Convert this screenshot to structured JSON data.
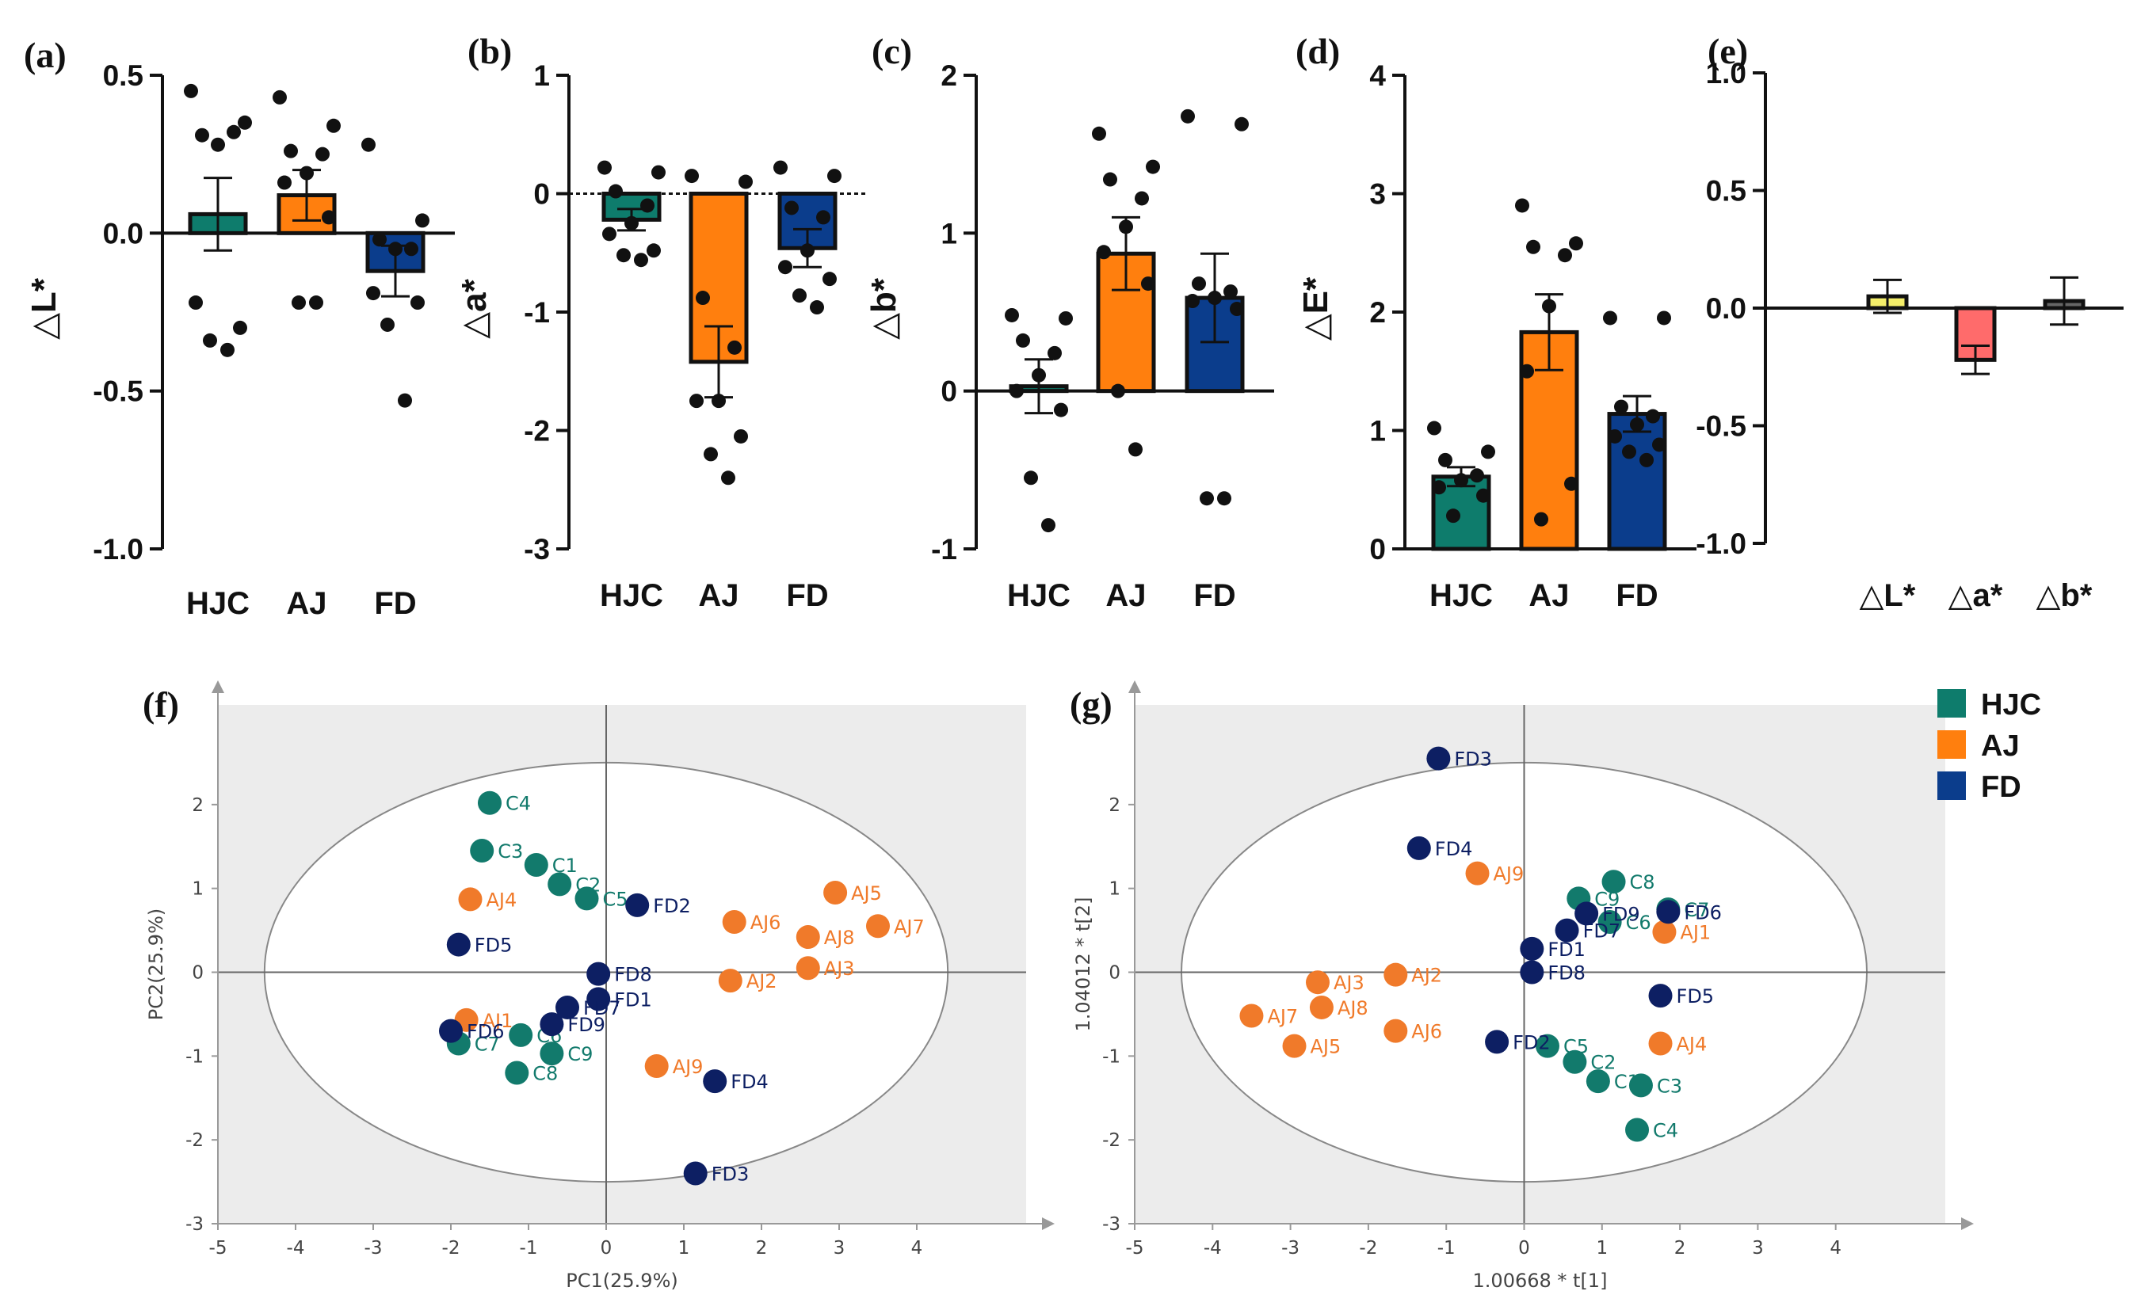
{
  "colors": {
    "HJC": "#0e7c6c",
    "AJ": "#ff7f0e",
    "FD": "#0b3d8c",
    "HJC_pca": "#127a6c",
    "AJ_pca": "#f07a2a",
    "FD_pca": "#0d1f63",
    "L": "#f5ef6a",
    "a": "#ff6b6b",
    "b": "#666666"
  },
  "legend": [
    {
      "label": "HJC",
      "color": "#0e7c6c"
    },
    {
      "label": "AJ",
      "color": "#ff7f0e"
    },
    {
      "label": "FD",
      "color": "#0b3d8c"
    }
  ],
  "chart_data": [
    {
      "panel": "(a)",
      "type": "bar",
      "ylabel": "△L*",
      "ylim": [
        -1.0,
        0.5
      ],
      "yticks": [
        0.5,
        0.0,
        -0.5,
        -1.0
      ],
      "ytick_labels": [
        "0.5",
        "0.0",
        "-0.5",
        "-1.0"
      ],
      "categories": [
        "HJC",
        "AJ",
        "FD"
      ],
      "values": [
        0.06,
        0.12,
        -0.12
      ],
      "errors": [
        0.115,
        0.08,
        0.08
      ],
      "points": [
        [
          0.45,
          0.35,
          0.31,
          0.32,
          0.28,
          -0.22,
          -0.3,
          -0.34,
          -0.37
        ],
        [
          0.43,
          0.34,
          0.26,
          0.25,
          0.19,
          0.16,
          0.05,
          -0.22,
          -0.22
        ],
        [
          0.28,
          0.04,
          -0.02,
          -0.05,
          -0.05,
          -0.19,
          -0.22,
          -0.29,
          -0.53
        ]
      ]
    },
    {
      "panel": "(b)",
      "type": "bar",
      "ylabel": "△a*",
      "ylim": [
        -3,
        1
      ],
      "yticks": [
        1,
        0,
        -1,
        -2,
        -3
      ],
      "ytick_labels": [
        "1",
        "0",
        "-1",
        "-2",
        "-3"
      ],
      "categories": [
        "HJC",
        "AJ",
        "FD"
      ],
      "values": [
        -0.22,
        -1.42,
        -0.46
      ],
      "errors": [
        0.09,
        0.3,
        0.16
      ],
      "points": [
        [
          0.22,
          0.18,
          0.02,
          -0.1,
          -0.25,
          -0.34,
          -0.48,
          -0.52,
          -0.56
        ],
        [
          0.15,
          0.1,
          -0.88,
          -1.3,
          -1.75,
          -1.75,
          -2.05,
          -2.2,
          -2.4
        ],
        [
          0.22,
          0.15,
          -0.12,
          -0.2,
          -0.48,
          -0.62,
          -0.72,
          -0.86,
          -0.96
        ]
      ]
    },
    {
      "panel": "(c)",
      "type": "bar",
      "ylabel": "△b*",
      "ylim": [
        -1,
        2
      ],
      "yticks": [
        2,
        1,
        0,
        -1
      ],
      "ytick_labels": [
        "2",
        "1",
        "0",
        "-1"
      ],
      "categories": [
        "HJC",
        "AJ",
        "FD"
      ],
      "values": [
        0.03,
        0.87,
        0.59
      ],
      "errors": [
        0.17,
        0.23,
        0.28
      ],
      "points": [
        [
          0.48,
          0.46,
          0.32,
          0.24,
          0.1,
          0.0,
          -0.12,
          -0.55,
          -0.85
        ],
        [
          1.63,
          1.42,
          1.34,
          1.22,
          1.04,
          0.88,
          0.68,
          0.0,
          -0.37
        ],
        [
          1.74,
          1.69,
          0.68,
          0.63,
          0.59,
          0.57,
          0.52,
          -0.68,
          -0.68
        ]
      ]
    },
    {
      "panel": "(d)",
      "type": "bar",
      "ylabel": "△E*",
      "ylim": [
        0,
        4
      ],
      "yticks": [
        4,
        3,
        2,
        1,
        0
      ],
      "ytick_labels": [
        "4",
        "3",
        "2",
        "1",
        "0"
      ],
      "categories": [
        "HJC",
        "AJ",
        "FD"
      ],
      "values": [
        0.61,
        1.83,
        1.14
      ],
      "errors": [
        0.08,
        0.32,
        0.15
      ],
      "points": [
        [
          1.02,
          0.82,
          0.75,
          0.62,
          0.58,
          0.52,
          0.45,
          0.28
        ],
        [
          2.9,
          2.58,
          2.55,
          2.48,
          2.05,
          1.5,
          0.55,
          0.25
        ],
        [
          1.95,
          1.95,
          1.2,
          1.12,
          1.05,
          0.95,
          0.88,
          0.82,
          0.75
        ]
      ]
    },
    {
      "panel": "(e)",
      "type": "bar",
      "ylim": [
        -1.0,
        1.0
      ],
      "yticks": [
        1.0,
        0.5,
        0.0,
        -0.5,
        -1.0
      ],
      "ytick_labels": [
        "1.0",
        "0.5",
        "0.0",
        "-0.5",
        "-1.0"
      ],
      "categories": [
        "△L*",
        "△a*",
        "△b*"
      ],
      "values": [
        0.05,
        -0.22,
        0.03
      ],
      "errors": [
        0.07,
        0.06,
        0.1
      ]
    },
    {
      "panel": "(f)",
      "type": "scatter",
      "xlabel": "PC1(25.9%)",
      "ylabel": "PC2(25.9%)",
      "xlim": [
        -5,
        5
      ],
      "ylim": [
        -3,
        3
      ],
      "xticks": [
        -5,
        -4,
        -3,
        -2,
        -1,
        0,
        1,
        2,
        3,
        4
      ],
      "yticks": [
        -3,
        -2,
        -1,
        0,
        1,
        2
      ],
      "ellipse": {
        "cx": 0,
        "cy": 0,
        "rx": 4.4,
        "ry": 2.5
      },
      "points": [
        {
          "label": "C1",
          "group": "HJC",
          "x": -0.9,
          "y": 1.28
        },
        {
          "label": "C2",
          "group": "HJC",
          "x": -0.6,
          "y": 1.05
        },
        {
          "label": "C3",
          "group": "HJC",
          "x": -1.6,
          "y": 1.45
        },
        {
          "label": "C4",
          "group": "HJC",
          "x": -1.5,
          "y": 2.02
        },
        {
          "label": "C5",
          "group": "HJC",
          "x": -0.25,
          "y": 0.88
        },
        {
          "label": "C6",
          "group": "HJC",
          "x": -1.1,
          "y": -0.75
        },
        {
          "label": "C7",
          "group": "HJC",
          "x": -1.9,
          "y": -0.85
        },
        {
          "label": "C8",
          "group": "HJC",
          "x": -1.15,
          "y": -1.2
        },
        {
          "label": "C9",
          "group": "HJC",
          "x": -0.7,
          "y": -0.97
        },
        {
          "label": "AJ1",
          "group": "AJ",
          "x": -1.8,
          "y": -0.57
        },
        {
          "label": "AJ2",
          "group": "AJ",
          "x": 1.6,
          "y": -0.1
        },
        {
          "label": "AJ3",
          "group": "AJ",
          "x": 2.6,
          "y": 0.05
        },
        {
          "label": "AJ4",
          "group": "AJ",
          "x": -1.75,
          "y": 0.87
        },
        {
          "label": "AJ5",
          "group": "AJ",
          "x": 2.95,
          "y": 0.95
        },
        {
          "label": "AJ6",
          "group": "AJ",
          "x": 1.65,
          "y": 0.6
        },
        {
          "label": "AJ7",
          "group": "AJ",
          "x": 3.5,
          "y": 0.55
        },
        {
          "label": "AJ8",
          "group": "AJ",
          "x": 2.6,
          "y": 0.42
        },
        {
          "label": "AJ9",
          "group": "AJ",
          "x": 0.65,
          "y": -1.12
        },
        {
          "label": "FD1",
          "group": "FD",
          "x": -0.1,
          "y": -0.32
        },
        {
          "label": "FD2",
          "group": "FD",
          "x": 0.4,
          "y": 0.8
        },
        {
          "label": "FD3",
          "group": "FD",
          "x": 1.15,
          "y": -2.4
        },
        {
          "label": "FD4",
          "group": "FD",
          "x": 1.4,
          "y": -1.3
        },
        {
          "label": "FD5",
          "group": "FD",
          "x": -1.9,
          "y": 0.33
        },
        {
          "label": "FD6",
          "group": "FD",
          "x": -2.0,
          "y": -0.7
        },
        {
          "label": "FD7",
          "group": "FD",
          "x": -0.5,
          "y": -0.42
        },
        {
          "label": "FD8",
          "group": "FD",
          "x": -0.1,
          "y": -0.02
        },
        {
          "label": "FD9",
          "group": "FD",
          "x": -0.7,
          "y": -0.62
        }
      ]
    },
    {
      "panel": "(g)",
      "type": "scatter",
      "xlabel": "1.00668 * t[1]",
      "ylabel": "1.04012 * t[2]",
      "xlim": [
        -5,
        5
      ],
      "ylim": [
        -3,
        3
      ],
      "xticks": [
        -5,
        -4,
        -3,
        -2,
        -1,
        0,
        1,
        2,
        3,
        4
      ],
      "yticks": [
        -3,
        -2,
        -1,
        0,
        1,
        2
      ],
      "ellipse": {
        "cx": 0,
        "cy": 0,
        "rx": 4.4,
        "ry": 2.5
      },
      "points": [
        {
          "label": "C1",
          "group": "HJC",
          "x": 0.95,
          "y": -1.3
        },
        {
          "label": "C2",
          "group": "HJC",
          "x": 0.65,
          "y": -1.07
        },
        {
          "label": "C3",
          "group": "HJC",
          "x": 1.5,
          "y": -1.35
        },
        {
          "label": "C4",
          "group": "HJC",
          "x": 1.45,
          "y": -1.88
        },
        {
          "label": "C5",
          "group": "HJC",
          "x": 0.3,
          "y": -0.88
        },
        {
          "label": "C6",
          "group": "HJC",
          "x": 1.1,
          "y": 0.6
        },
        {
          "label": "C7",
          "group": "HJC",
          "x": 1.85,
          "y": 0.75
        },
        {
          "label": "C8",
          "group": "HJC",
          "x": 1.15,
          "y": 1.08
        },
        {
          "label": "C9",
          "group": "HJC",
          "x": 0.7,
          "y": 0.88
        },
        {
          "label": "AJ1",
          "group": "AJ",
          "x": 1.8,
          "y": 0.48
        },
        {
          "label": "AJ2",
          "group": "AJ",
          "x": -1.65,
          "y": -0.03
        },
        {
          "label": "AJ3",
          "group": "AJ",
          "x": -2.65,
          "y": -0.12
        },
        {
          "label": "AJ4",
          "group": "AJ",
          "x": 1.75,
          "y": -0.85
        },
        {
          "label": "AJ5",
          "group": "AJ",
          "x": -2.95,
          "y": -0.88
        },
        {
          "label": "AJ6",
          "group": "AJ",
          "x": -1.65,
          "y": -0.7
        },
        {
          "label": "AJ7",
          "group": "AJ",
          "x": -3.5,
          "y": -0.52
        },
        {
          "label": "AJ8",
          "group": "AJ",
          "x": -2.6,
          "y": -0.42
        },
        {
          "label": "AJ9",
          "group": "AJ",
          "x": -0.6,
          "y": 1.18
        },
        {
          "label": "FD1",
          "group": "FD",
          "x": 0.1,
          "y": 0.28
        },
        {
          "label": "FD2",
          "group": "FD",
          "x": -0.35,
          "y": -0.83
        },
        {
          "label": "FD3",
          "group": "FD",
          "x": -1.1,
          "y": 2.55
        },
        {
          "label": "FD4",
          "group": "FD",
          "x": -1.35,
          "y": 1.48
        },
        {
          "label": "FD5",
          "group": "FD",
          "x": 1.75,
          "y": -0.28
        },
        {
          "label": "FD6",
          "group": "FD",
          "x": 1.85,
          "y": 0.72
        },
        {
          "label": "FD7",
          "group": "FD",
          "x": 0.55,
          "y": 0.5
        },
        {
          "label": "FD8",
          "group": "FD",
          "x": 0.1,
          "y": 0.0
        },
        {
          "label": "FD9",
          "group": "FD",
          "x": 0.8,
          "y": 0.7
        }
      ]
    }
  ]
}
